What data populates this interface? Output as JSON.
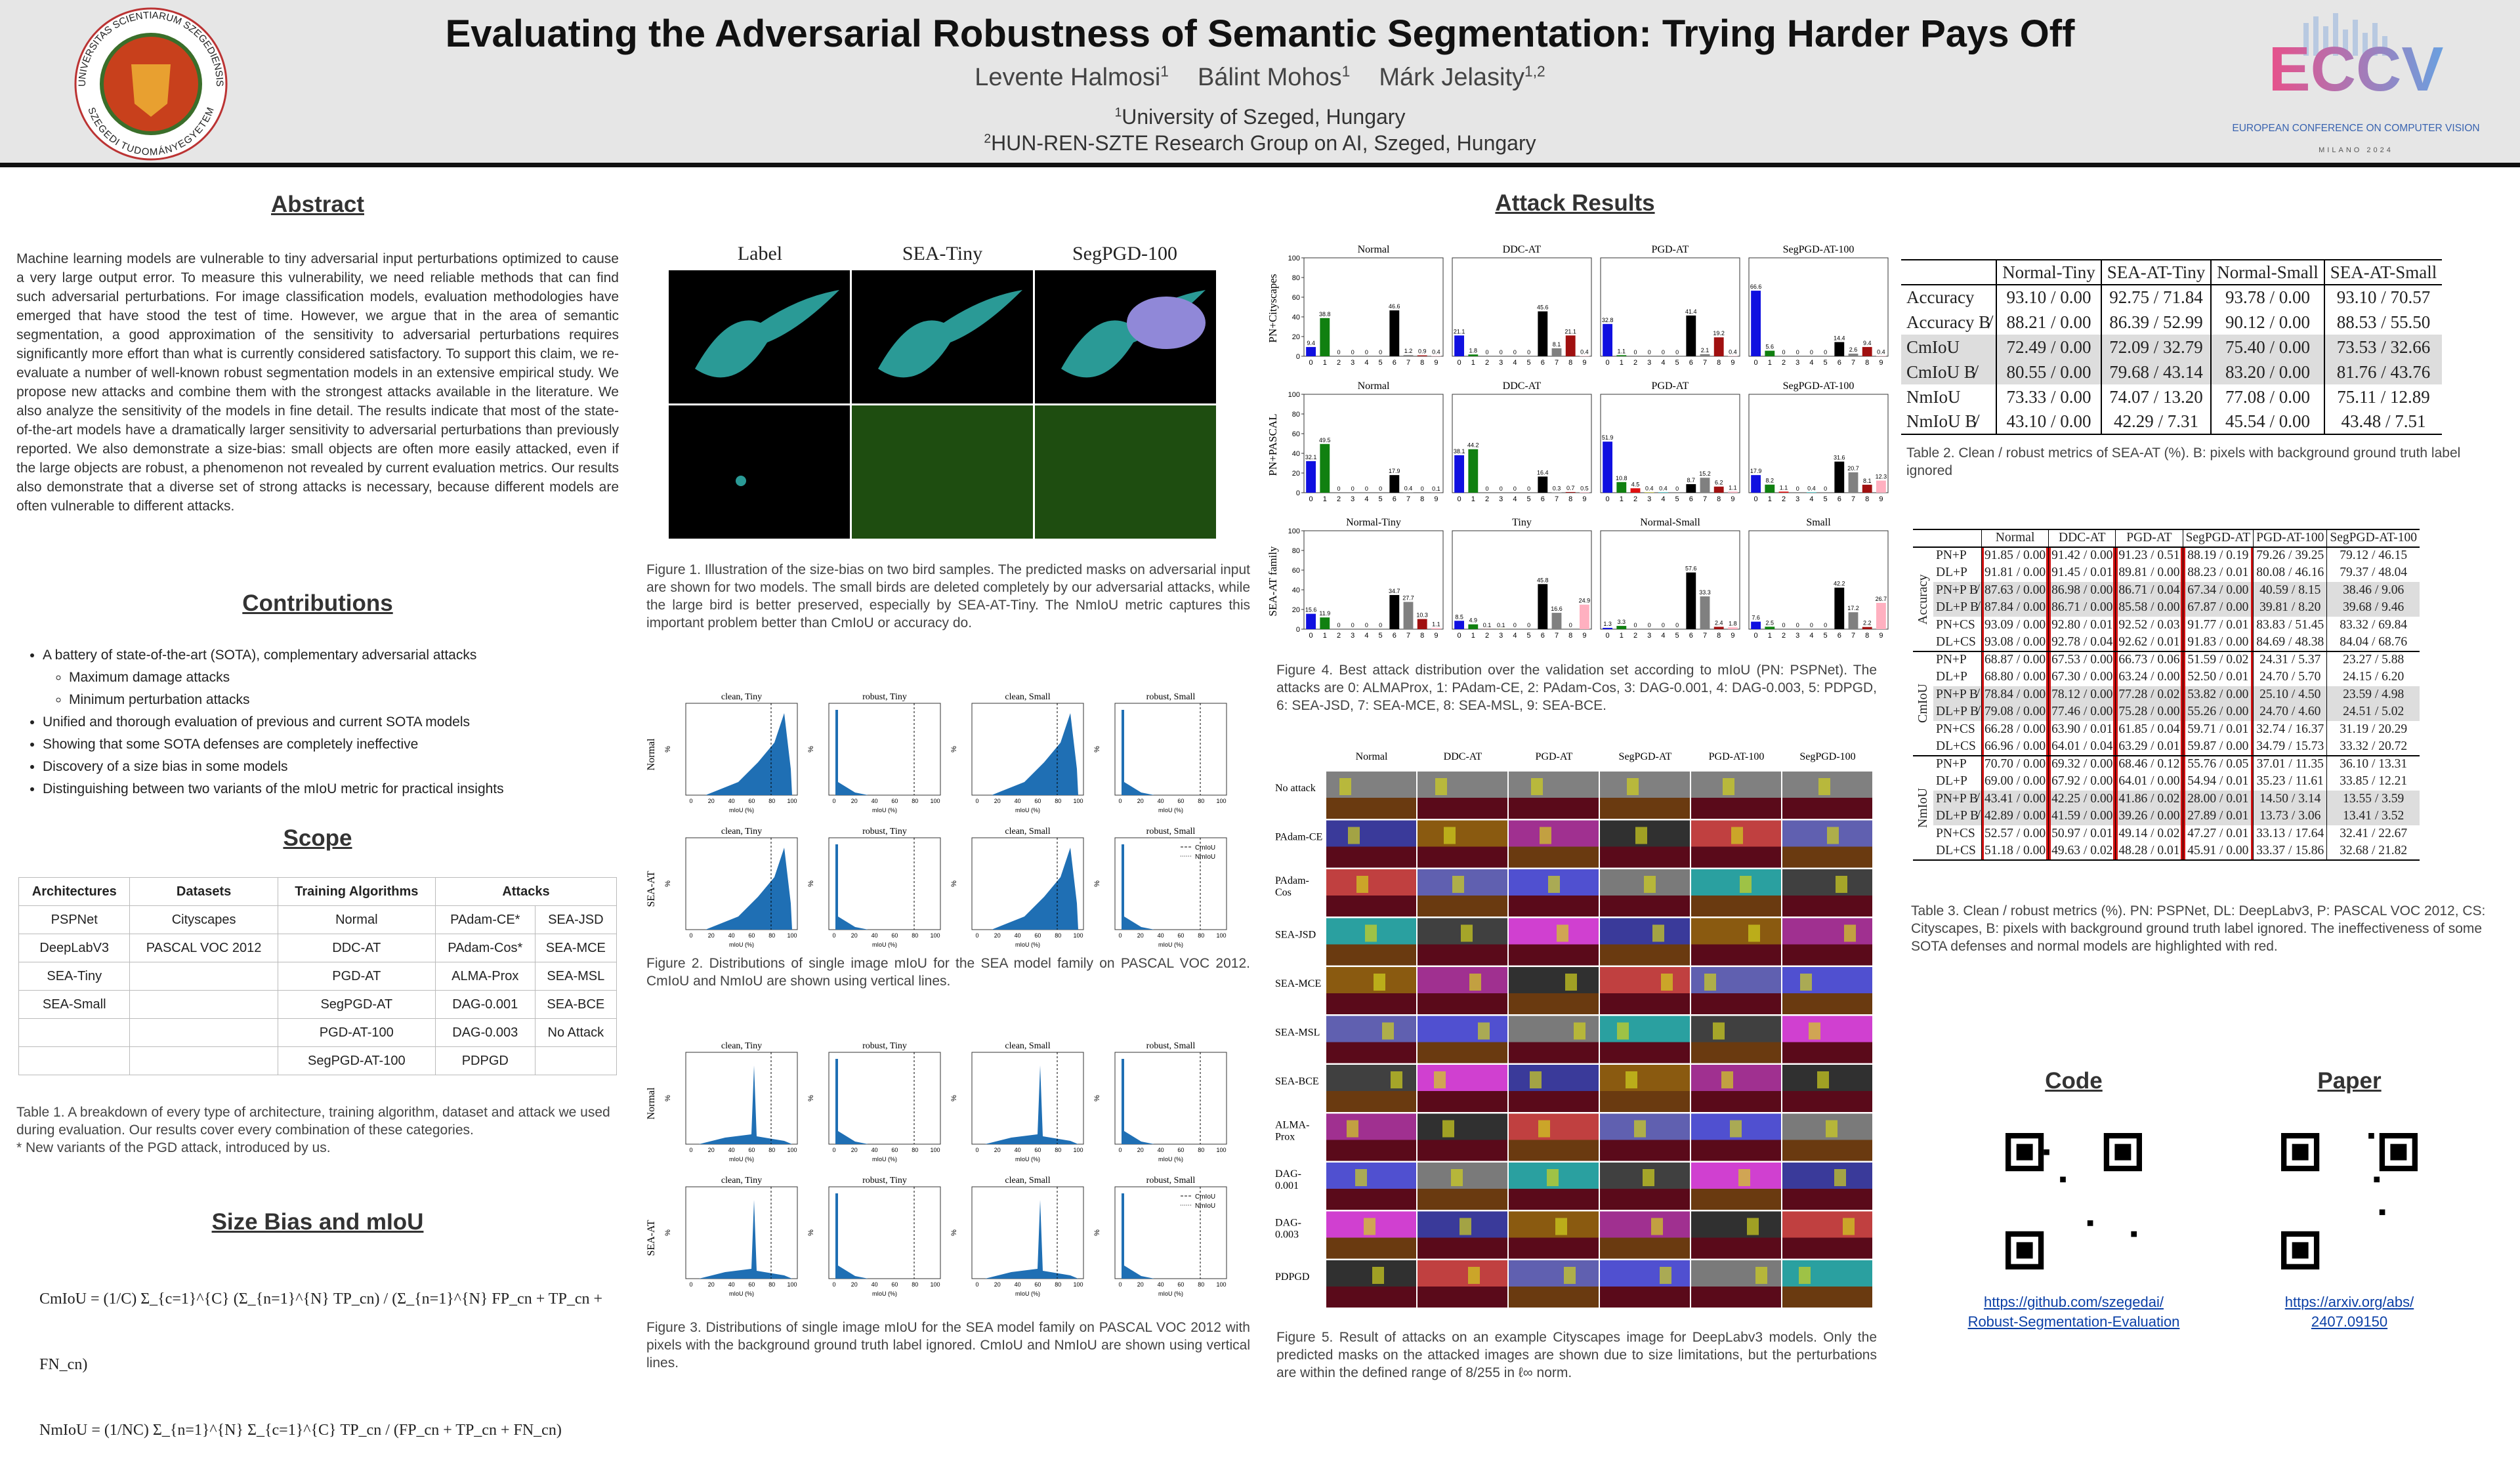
{
  "header": {
    "title": "Evaluating the Adversarial Robustness of Semantic Segmentation: Trying Harder Pays Off",
    "authors": [
      {
        "name": "Levente Halmosi",
        "affil": "1"
      },
      {
        "name": "Bálint Mohos",
        "affil": "1"
      },
      {
        "name": "Márk Jelasity",
        "affil": "1,2"
      }
    ],
    "affiliations": [
      {
        "mark": "1",
        "text": "University of Szeged, Hungary"
      },
      {
        "mark": "2",
        "text": "HUN-REN-SZTE Research Group on AI, Szeged, Hungary"
      }
    ],
    "logo_left": {
      "ring_top": "UNIVERSITAS SCIENTIARUM SZEGEDIENSIS",
      "ring_bottom": "SZEGEDI TUDOMÁNYEGYETEM"
    },
    "logo_right": {
      "name": "ECCV",
      "subtitle": "EUROPEAN CONFERENCE ON COMPUTER VISION",
      "city": "MILANO 2024"
    }
  },
  "abstract": {
    "heading": "Abstract",
    "text": "Machine learning models are vulnerable to tiny adversarial input perturbations optimized to cause a very large output error. To measure this vulnerability, we need reliable methods that can find such adversarial perturbations. For image classification models, evaluation methodologies have emerged that have stood the test of time. However, we argue that in the area of semantic segmentation, a good approximation of the sensitivity to adversarial perturbations requires significantly more effort than what is currently considered satisfactory. To support this claim, we re-evaluate a number of well-known robust segmentation models in an extensive empirical study. We propose new attacks and combine them with the strongest attacks available in the literature. We also analyze the sensitivity of the models in fine detail. The results indicate that most of the state-of-the-art models have a dramatically larger sensitivity to adversarial perturbations than previously reported. We also demonstrate a size-bias: small objects are often more easily attacked, even if the large objects are robust, a phenomenon not revealed by current evaluation metrics. Our results also demonstrate that a diverse set of strong attacks is necessary, because different models are often vulnerable to different attacks."
  },
  "contributions": {
    "heading": "Contributions",
    "items": [
      {
        "text": "A battery of state-of-the-art (SOTA), complementary adversarial attacks",
        "sub": [
          "Maximum damage attacks",
          "Minimum perturbation attacks"
        ]
      },
      {
        "text": "Unified and thorough evaluation of previous and current SOTA models",
        "sub": []
      },
      {
        "text": "Showing that some SOTA defenses are completely ineffective",
        "sub": []
      },
      {
        "text": "Discovery of a size bias in some models",
        "sub": []
      },
      {
        "text": "Distinguishing between two variants of the mIoU metric for practical insights",
        "sub": []
      }
    ]
  },
  "scope": {
    "heading": "Scope",
    "table": {
      "header": [
        "Architectures",
        "Datasets",
        "Training Algorithms",
        "Attacks"
      ],
      "rows": [
        [
          "PSPNet",
          "Cityscapes",
          "Normal",
          "PAdam-CE*",
          "SEA-JSD"
        ],
        [
          "DeepLabV3",
          "PASCAL VOC 2012",
          "DDC-AT",
          "PAdam-Cos*",
          "SEA-MCE"
        ],
        [
          "SEA-Tiny",
          null,
          "PGD-AT",
          "ALMA-Prox",
          "SEA-MSL"
        ],
        [
          "SEA-Small",
          null,
          "SegPGD-AT",
          "DAG-0.001",
          "SEA-BCE"
        ],
        [
          null,
          null,
          "PGD-AT-100",
          "DAG-0.003",
          "No Attack"
        ],
        [
          null,
          null,
          "SegPGD-AT-100",
          "PDPGD",
          null
        ]
      ]
    },
    "caption": "Table 1. A breakdown of every type of architecture, training algorithm, dataset and attack we used during evaluation. Our results cover every combination of these categories.",
    "footnote": "* New variants of the PGD attack, introduced by us."
  },
  "size_bias": {
    "heading": "Size Bias and mIoU",
    "formulas": [
      "CmIoU = (1/C) Σ_{c=1}^{C} (Σ_{n=1}^{N} TP_cn) / (Σ_{n=1}^{N} FP_cn + TP_cn + FN_cn)",
      "NmIoU = (1/NC) Σ_{n=1}^{N} Σ_{c=1}^{C} TP_cn / (FP_cn + TP_cn + FN_cn)"
    ]
  },
  "figure1": {
    "columns": [
      "Label",
      "SEA-Tiny",
      "SegPGD-100"
    ],
    "caption": "Figure 1. Illustration of the size-bias on two bird samples. The predicted masks on adversarial input are shown for two models. The small birds are deleted completely by our adversarial attacks, while the large bird is better preserved, especially by SEA-AT-Tiny. The NmIoU metric captures this important problem better than CmIoU or accuracy do."
  },
  "figure2": {
    "panel_titles": [
      "clean, Tiny",
      "robust, Tiny",
      "clean, Small",
      "robust, Small"
    ],
    "row_labels": [
      "Normal",
      "SEA-AT"
    ],
    "x_label": "mIoU (%)",
    "y_label": "%",
    "xticks": [
      0,
      20,
      40,
      60,
      80,
      100
    ],
    "legend": [
      "CmIoU",
      "NmIoU"
    ],
    "caption": "Figure 2. Distributions of single image mIoU for the SEA model family on PASCAL VOC 2012. CmIoU and NmIoU are shown using vertical lines."
  },
  "figure3": {
    "panel_titles": [
      "clean, Tiny",
      "robust, Tiny",
      "clean, Small",
      "robust, Small"
    ],
    "row_labels": [
      "Normal",
      "SEA-AT"
    ],
    "x_label": "mIoU (%)",
    "y_label": "%",
    "xticks": [
      0,
      20,
      40,
      60,
      80,
      100
    ],
    "legend": [
      "CmIoU",
      "NmIoU"
    ],
    "caption": "Figure 3. Distributions of single image mIoU for the SEA model family on PASCAL VOC 2012 with pixels with the background ground truth label ignored. CmIoU and NmIoU are shown using vertical lines."
  },
  "attack_results": {
    "heading": "Attack Results"
  },
  "figure4": {
    "row_labels": [
      "PN+Cityscapes",
      "PN+PASCAL",
      "SEA-AT family"
    ],
    "categories": [
      "0",
      "1",
      "2",
      "3",
      "4",
      "5",
      "6",
      "7",
      "8",
      "9"
    ],
    "bar_colors": [
      "#1010e0",
      "#108010",
      "#e01010",
      "#c0c000",
      "#00c0c0",
      "#c000c0",
      "#000000",
      "#808080",
      "#a01010",
      "#ffb0c0"
    ],
    "ylim": [
      0,
      100
    ],
    "yticks": [
      0,
      20,
      40,
      60,
      80,
      100
    ],
    "panels": [
      [
        {
          "title": "Normal",
          "values": [
            9.4,
            38.8,
            0,
            0,
            0,
            0,
            46.6,
            1.2,
            0.9,
            0.4
          ]
        },
        {
          "title": "DDC-AT",
          "values": [
            21.1,
            1.8,
            0,
            0,
            0,
            0,
            45.6,
            8.1,
            21.1,
            0.4
          ]
        },
        {
          "title": "PGD-AT",
          "values": [
            32.8,
            1.1,
            0,
            0,
            0,
            0,
            41.4,
            2.1,
            19.2,
            0.4
          ]
        },
        {
          "title": "SegPGD-AT-100",
          "values": [
            66.6,
            5.6,
            0,
            0,
            0,
            0,
            14.4,
            2.6,
            9.4,
            0.4
          ]
        }
      ],
      [
        {
          "title": "Normal",
          "values": [
            32.1,
            49.5,
            0,
            0,
            0,
            0,
            17.9,
            0.4,
            0,
            0.1
          ]
        },
        {
          "title": "DDC-AT",
          "values": [
            38.1,
            44.2,
            0,
            0,
            0,
            0,
            16.4,
            0.3,
            0.7,
            0.5
          ]
        },
        {
          "title": "PGD-AT",
          "values": [
            51.9,
            10.8,
            4.5,
            0.4,
            0.4,
            0,
            8.7,
            15.2,
            6.2,
            1.1
          ]
        },
        {
          "title": "SegPGD-AT-100",
          "values": [
            17.9,
            8.2,
            1.1,
            0,
            0.4,
            0,
            31.6,
            20.7,
            8.1,
            12.3
          ]
        }
      ],
      [
        {
          "title": "Normal-Tiny",
          "values": [
            15.6,
            11.9,
            0,
            0,
            0,
            0,
            34.7,
            27.7,
            10.3,
            1.1
          ]
        },
        {
          "title": "Tiny",
          "values": [
            8.5,
            4.9,
            0.1,
            0.1,
            0,
            0,
            45.8,
            16.6,
            0,
            24.9
          ]
        },
        {
          "title": "Normal-Small",
          "values": [
            1.3,
            3.3,
            0,
            0,
            0,
            0,
            57.6,
            33.3,
            2.4,
            1.8
          ]
        },
        {
          "title": "Small",
          "values": [
            7.6,
            2.5,
            0,
            0,
            0,
            0,
            42.2,
            17.2,
            2.2,
            26.7
          ]
        }
      ]
    ],
    "caption": "Figure 4. Best attack distribution over the validation set according to mIoU (PN: PSPNet). The attacks are 0: ALMAProx, 1: PAdam-CE, 2: PAdam-Cos, 3: DAG-0.001, 4: DAG-0.003, 5: PDPGD, 6: SEA-JSD, 7: SEA-MCE, 8: SEA-MSL, 9: SEA-BCE."
  },
  "figure5": {
    "columns": [
      "Normal",
      "DDC-AT",
      "PGD-AT",
      "SegPGD-AT",
      "PGD-AT-100",
      "SegPGD-100"
    ],
    "rows": [
      "No attack",
      "PAdam-CE",
      "PAdam-Cos",
      "SEA-JSD",
      "SEA-MCE",
      "SEA-MSL",
      "SEA-BCE",
      "ALMA-Prox",
      "DAG-0.001",
      "DAG-0.003",
      "PDPGD"
    ],
    "caption": "Figure 5. Result of attacks on an example Cityscapes image for DeepLabv3 models. Only the predicted masks on the attacked images are shown due to size limitations, but the perturbations are within the defined range of 8/255 in ℓ∞ norm."
  },
  "table2": {
    "header": [
      "Normal-Tiny",
      "SEA-AT-Tiny",
      "Normal-Small",
      "SEA-AT-Small"
    ],
    "rows": [
      {
        "label": "Accuracy",
        "cells": [
          "93.10 / 0.00",
          "92.75 / 71.84",
          "93.78 / 0.00",
          "93.10 / 70.57"
        ]
      },
      {
        "label": "Accuracy B̸",
        "cells": [
          "88.21 / 0.00",
          "86.39 / 52.99",
          "90.12 / 0.00",
          "88.53 / 55.50"
        ]
      },
      {
        "label": "CmIoU",
        "cells": [
          "72.49 / 0.00",
          "72.09 / 32.79",
          "75.40 / 0.00",
          "73.53 / 32.66"
        ]
      },
      {
        "label": "CmIoU B̸",
        "cells": [
          "80.55 / 0.00",
          "79.68 / 43.14",
          "83.20 / 0.00",
          "81.76 / 43.76"
        ]
      },
      {
        "label": "NmIoU",
        "cells": [
          "73.33 / 0.00",
          "74.07 / 13.20",
          "77.08 / 0.00",
          "75.11 / 12.89"
        ]
      },
      {
        "label": "NmIoU B̸",
        "cells": [
          "43.10 / 0.00",
          "42.29 / 7.31",
          "45.54 / 0.00",
          "43.48 / 7.51"
        ]
      }
    ],
    "caption": "Table 2. Clean / robust metrics of SEA-AT (%). B: pixels with background ground truth label ignored"
  },
  "table3": {
    "header": [
      "Normal",
      "DDC-AT",
      "PGD-AT",
      "SegPGD-AT",
      "PGD-AT-100",
      "SegPGD-AT-100"
    ],
    "groups": [
      {
        "label": "Accuracy",
        "rows": [
          {
            "label": "PN+P",
            "cells": [
              "91.85 / 0.00",
              "91.42 / 0.00",
              "91.23 / 0.51",
              "88.19 / 0.19",
              "79.26 / 39.25",
              "79.12 / 46.15"
            ]
          },
          {
            "label": "DL+P",
            "cells": [
              "91.81 / 0.00",
              "91.45 / 0.01",
              "89.81 / 0.00",
              "88.23 / 0.01",
              "80.08 / 46.16",
              "79.37 / 48.04"
            ]
          },
          {
            "label": "PN+P B̸",
            "cells": [
              "87.63 / 0.00",
              "86.98 / 0.00",
              "86.71 / 0.04",
              "67.34 / 0.00",
              "40.59 / 8.15",
              "38.46 / 9.06"
            ]
          },
          {
            "label": "DL+P B̸",
            "cells": [
              "87.84 / 0.00",
              "86.71 / 0.00",
              "85.58 / 0.00",
              "67.87 / 0.00",
              "39.81 / 8.20",
              "39.68 / 9.46"
            ]
          },
          {
            "label": "PN+CS",
            "cells": [
              "93.09 / 0.00",
              "92.80 / 0.01",
              "92.52 / 0.03",
              "91.77 / 0.01",
              "83.83 / 51.45",
              "83.32 / 69.84"
            ]
          },
          {
            "label": "DL+CS",
            "cells": [
              "93.08 / 0.00",
              "92.78 / 0.04",
              "92.62 / 0.01",
              "91.83 / 0.00",
              "84.69 / 48.38",
              "84.04 / 68.76"
            ]
          }
        ]
      },
      {
        "label": "CmIoU",
        "rows": [
          {
            "label": "PN+P",
            "cells": [
              "68.87 / 0.00",
              "67.53 / 0.00",
              "66.73 / 0.06",
              "51.59 / 0.02",
              "24.31 / 5.37",
              "23.27 / 5.88"
            ]
          },
          {
            "label": "DL+P",
            "cells": [
              "68.80 / 0.00",
              "67.30 / 0.00",
              "63.24 / 0.00",
              "52.50 / 0.01",
              "24.70 / 5.70",
              "24.15 / 6.20"
            ]
          },
          {
            "label": "PN+P B̸",
            "cells": [
              "78.84 / 0.00",
              "78.12 / 0.00",
              "77.28 / 0.02",
              "53.82 / 0.00",
              "25.10 / 4.50",
              "23.59 / 4.98"
            ]
          },
          {
            "label": "DL+P B̸",
            "cells": [
              "79.08 / 0.00",
              "77.46 / 0.00",
              "75.28 / 0.00",
              "55.26 / 0.00",
              "24.70 / 4.60",
              "24.51 / 5.02"
            ]
          },
          {
            "label": "PN+CS",
            "cells": [
              "66.28 / 0.00",
              "63.90 / 0.01",
              "61.85 / 0.04",
              "59.71 / 0.01",
              "32.74 / 16.37",
              "31.19 / 20.29"
            ]
          },
          {
            "label": "DL+CS",
            "cells": [
              "66.96 / 0.00",
              "64.01 / 0.04",
              "63.29 / 0.01",
              "59.87 / 0.00",
              "34.79 / 15.73",
              "33.32 / 20.72"
            ]
          }
        ]
      },
      {
        "label": "NmIoU",
        "rows": [
          {
            "label": "PN+P",
            "cells": [
              "70.70 / 0.00",
              "69.32 / 0.00",
              "68.46 / 0.12",
              "55.76 / 0.05",
              "37.01 / 11.35",
              "36.10 / 13.31"
            ]
          },
          {
            "label": "DL+P",
            "cells": [
              "69.00 / 0.00",
              "67.92 / 0.00",
              "64.01 / 0.00",
              "54.94 / 0.01",
              "35.23 / 11.61",
              "33.85 / 12.21"
            ]
          },
          {
            "label": "PN+P B̸",
            "cells": [
              "43.41 / 0.00",
              "42.25 / 0.00",
              "41.86 / 0.02",
              "28.00 / 0.01",
              "14.50 / 3.14",
              "13.55 / 3.59"
            ]
          },
          {
            "label": "DL+P B̸",
            "cells": [
              "42.89 / 0.00",
              "41.59 / 0.00",
              "39.26 / 0.00",
              "27.89 / 0.01",
              "13.73 / 3.06",
              "13.41 / 3.52"
            ]
          },
          {
            "label": "PN+CS",
            "cells": [
              "52.57 / 0.00",
              "50.97 / 0.01",
              "49.14 / 0.02",
              "47.27 / 0.01",
              "33.13 / 17.64",
              "32.41 / 22.67"
            ]
          },
          {
            "label": "DL+CS",
            "cells": [
              "51.18 / 0.00",
              "49.63 / 0.02",
              "48.28 / 0.01",
              "45.91 / 0.00",
              "33.37 / 15.86",
              "32.68 / 21.82"
            ]
          }
        ]
      }
    ],
    "caption": "Table 3. Clean / robust metrics (%). PN: PSPNet, DL: DeepLabv3, P: PASCAL VOC 2012, CS: Cityscapes, B: pixels with background ground truth label ignored. The ineffectiveness of some SOTA defenses and normal models are highlighted with red."
  },
  "code": {
    "heading": "Code",
    "link": [
      "https://github.com/szegedai/",
      "Robust-Segmentation-Evaluation"
    ]
  },
  "paper": {
    "heading": "Paper",
    "link": [
      "https://arxiv.org/abs/",
      "2407.09150"
    ]
  }
}
